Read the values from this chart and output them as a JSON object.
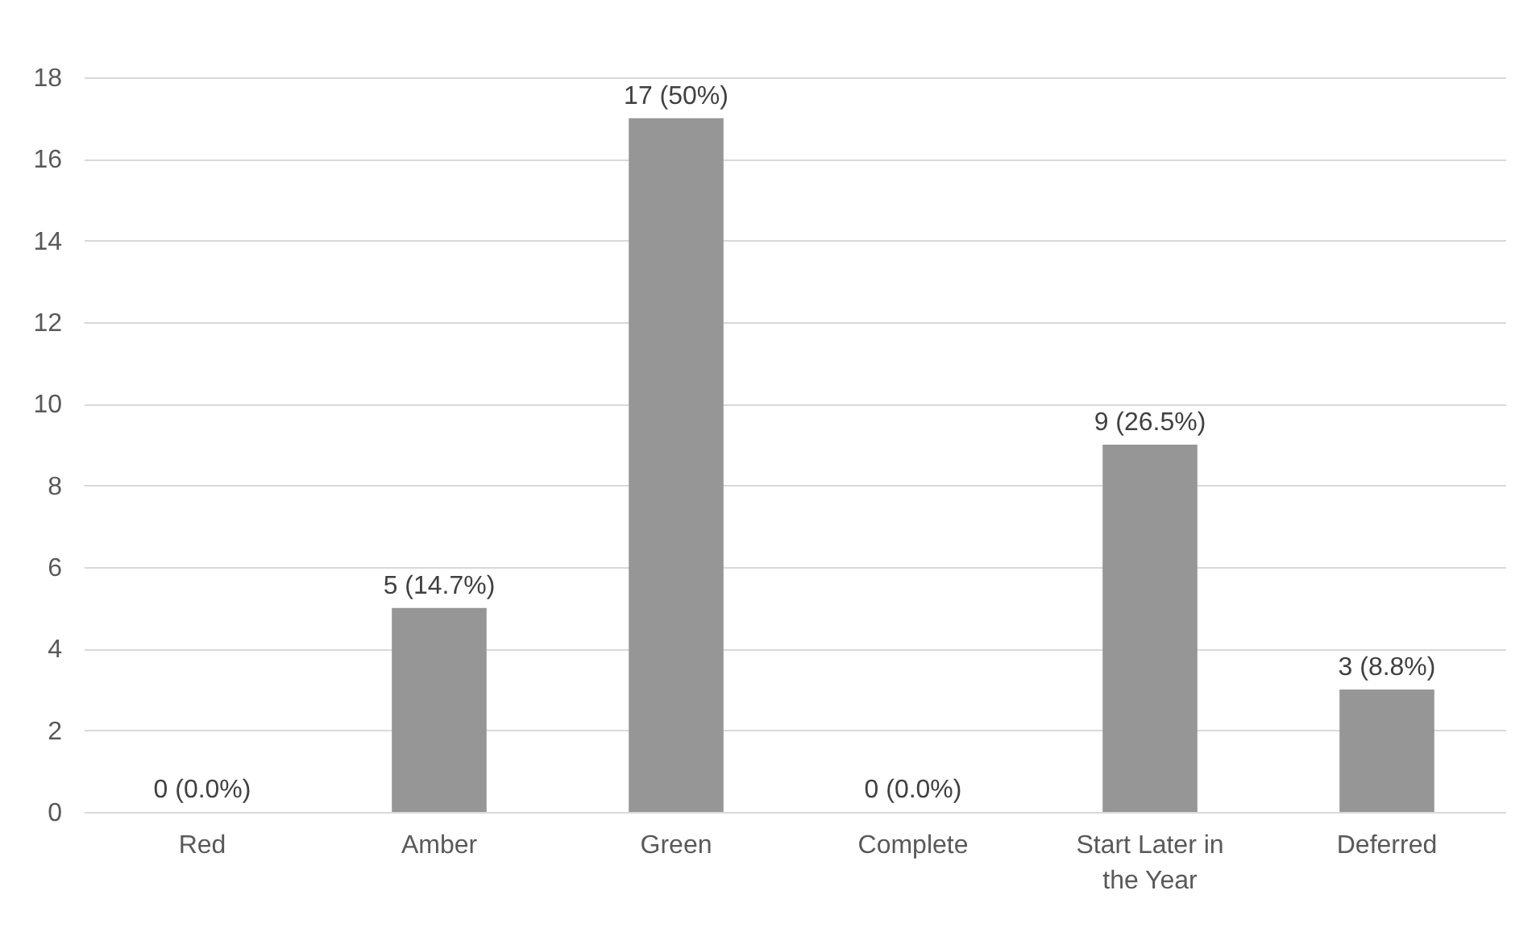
{
  "chart_data": {
    "type": "bar",
    "categories": [
      "Red",
      "Amber",
      "Green",
      "Complete",
      "Start Later in the Year",
      "Deferred"
    ],
    "values": [
      0,
      5,
      17,
      0,
      9,
      3
    ],
    "value_labels": [
      "0 (0.0%)",
      "5 (14.7%)",
      "17 (50%)",
      "0 (0.0%)",
      "9 (26.5%)",
      "3 (8.8%)"
    ],
    "color": "#969696",
    "ylim": [
      0,
      18
    ],
    "yticks": [
      0,
      2,
      4,
      6,
      8,
      10,
      12,
      14,
      16,
      18
    ],
    "grid": "y"
  }
}
